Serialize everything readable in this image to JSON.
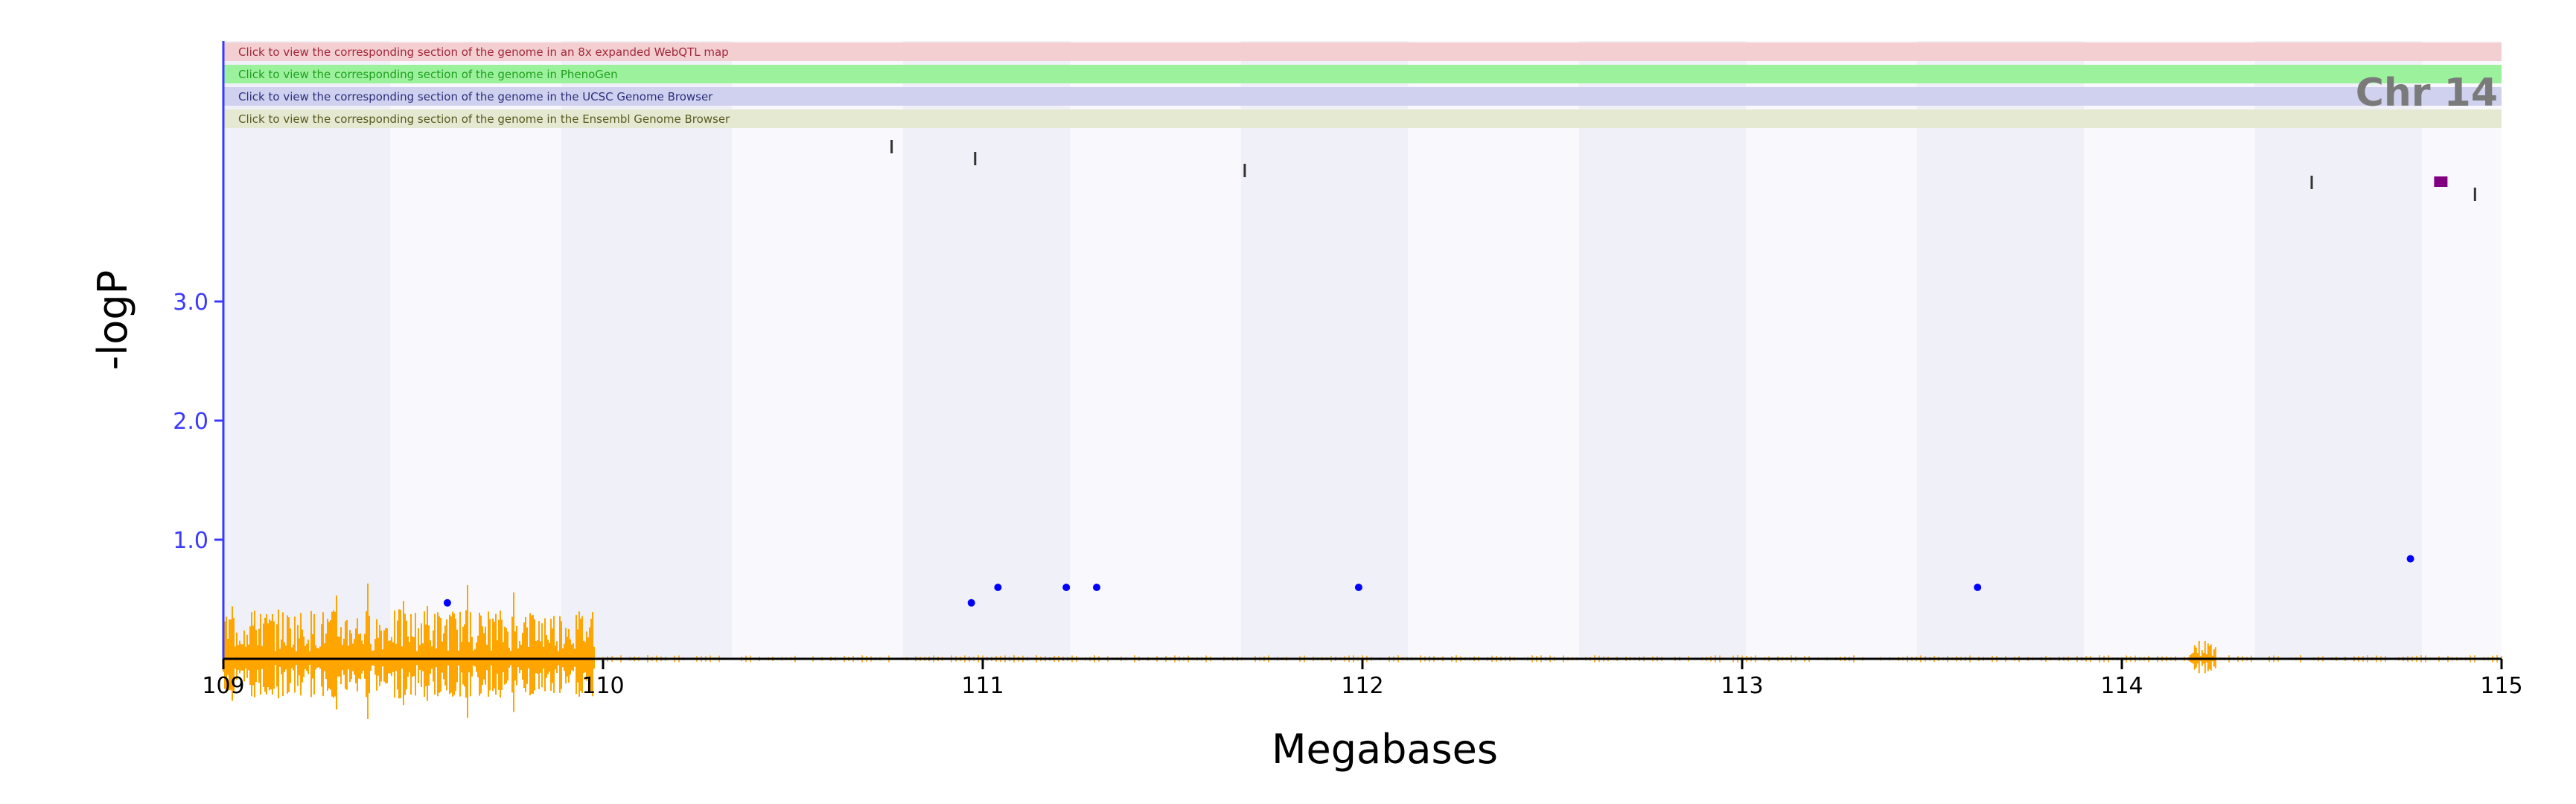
{
  "links": [
    {
      "label": "Click to view the corresponding section of the genome in an 8x expanded WebQTL map",
      "fill": "#f4cfd2",
      "text_color": "#a0283a"
    },
    {
      "label": "Click to view the corresponding section of the genome in PhenoGen",
      "fill": "#9cf29c",
      "text_color": "#1f9e1f"
    },
    {
      "label": "Click to view the corresponding section of the genome in the UCSC Genome Browser",
      "fill": "#cfd1ef",
      "text_color": "#2d2f7a"
    },
    {
      "label": "Click to view the corresponding section of the genome in the Ensembl Genome Browser",
      "fill": "#e6e9d1",
      "text_color": "#5a5a22"
    }
  ],
  "chromosome_label": "Chr 14",
  "colors": {
    "axis_x": "#000000",
    "axis_y": "#3a3aff",
    "snp_density": "#ffa500",
    "qtl_points": "#0000ff",
    "peak_marker": "#800080",
    "shade_dark": "#f0f1f8",
    "shade_light": "#f9f9fd"
  },
  "chart_data": {
    "type": "scatter",
    "xlabel": "Megabases",
    "ylabel": "-logP",
    "xlim": [
      109,
      115
    ],
    "ylim": [
      0,
      4.0
    ],
    "x_ticks": [
      109,
      110,
      111,
      112,
      113,
      114,
      115
    ],
    "x_tick_labels": [
      "109",
      "110",
      "111",
      "112",
      "113",
      "114",
      "115"
    ],
    "y_ticks": [
      1.0,
      2.0,
      3.0
    ],
    "y_tick_labels": [
      "1.0",
      "2.0",
      "3.0"
    ],
    "points": [
      {
        "x": 109.59,
        "y": 0.47
      },
      {
        "x": 110.97,
        "y": 0.47
      },
      {
        "x": 111.04,
        "y": 0.6
      },
      {
        "x": 111.22,
        "y": 0.6
      },
      {
        "x": 111.3,
        "y": 0.6
      },
      {
        "x": 111.99,
        "y": 0.6
      },
      {
        "x": 113.62,
        "y": 0.6
      },
      {
        "x": 114.76,
        "y": 0.84
      }
    ],
    "top_markers": [
      {
        "x": 110.76,
        "y": 4.3
      },
      {
        "x": 110.98,
        "y": 4.2
      },
      {
        "x": 111.69,
        "y": 4.1
      },
      {
        "x": 114.5,
        "y": 4.0
      },
      {
        "x": 114.93,
        "y": 3.9
      }
    ],
    "peak_marker": {
      "x": 114.84,
      "y": 4.0
    },
    "snp_density_segments": [
      {
        "start": 109.0,
        "end": 109.98,
        "amplitude": 0.42
      },
      {
        "start": 114.18,
        "end": 114.25,
        "amplitude": 0.16
      }
    ],
    "shaded_bands": [
      [
        109.0,
        109.44
      ],
      [
        109.89,
        110.34
      ],
      [
        110.79,
        111.23
      ],
      [
        111.68,
        112.12
      ],
      [
        112.57,
        113.01
      ],
      [
        113.46,
        113.9
      ],
      [
        114.35,
        114.79
      ]
    ]
  }
}
